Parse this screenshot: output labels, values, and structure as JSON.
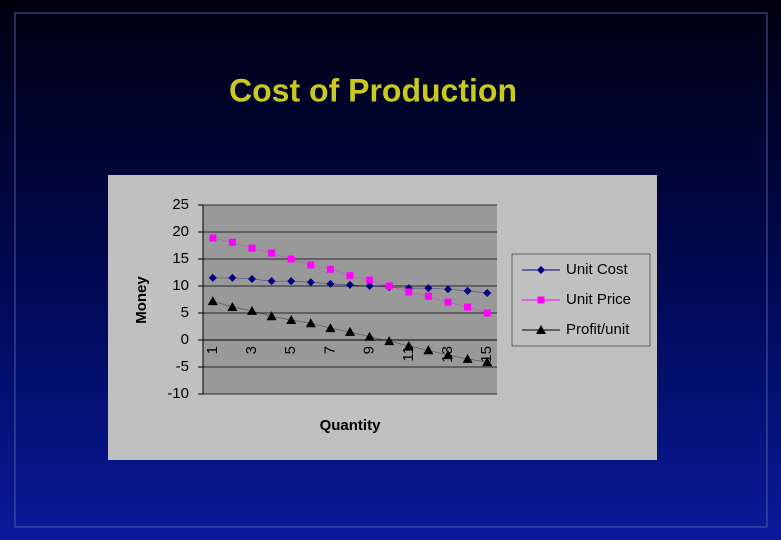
{
  "chart_data": {
    "type": "line",
    "title": "Cost of Production",
    "x_label": "Quantity",
    "y_label": "Money",
    "categories": [
      1,
      null,
      3,
      null,
      5,
      null,
      7,
      null,
      9,
      null,
      11,
      null,
      13,
      null,
      15
    ],
    "series": [
      {
        "name": "Unit Cost",
        "color": "#000080",
        "marker": "diamond",
        "values": [
          11.5,
          11.5,
          11.3,
          10.9,
          10.9,
          10.7,
          10.4,
          10.2,
          10,
          9.8,
          9.6,
          9.6,
          9.4,
          9.1,
          8.7
        ]
      },
      {
        "name": "Unit Price",
        "color": "#ff00ff",
        "marker": "square",
        "values": [
          18.9,
          18.1,
          17,
          16.1,
          15,
          13.9,
          13.1,
          11.9,
          11.1,
          10,
          8.9,
          8.1,
          7,
          6.1,
          5
        ]
      },
      {
        "name": "Profit/unit",
        "color": "#000000",
        "marker": "triangle",
        "values": [
          7.2,
          6.1,
          5.4,
          4.4,
          3.7,
          3.1,
          2.2,
          1.5,
          0.6,
          -0.2,
          -1.1,
          -1.9,
          -2.8,
          -3.5,
          -4.1
        ]
      }
    ],
    "ylim": [
      -10,
      25
    ],
    "yticks": [
      -10,
      -5,
      0,
      5,
      10,
      15,
      20,
      25
    ],
    "grid": true,
    "legend": "right"
  }
}
